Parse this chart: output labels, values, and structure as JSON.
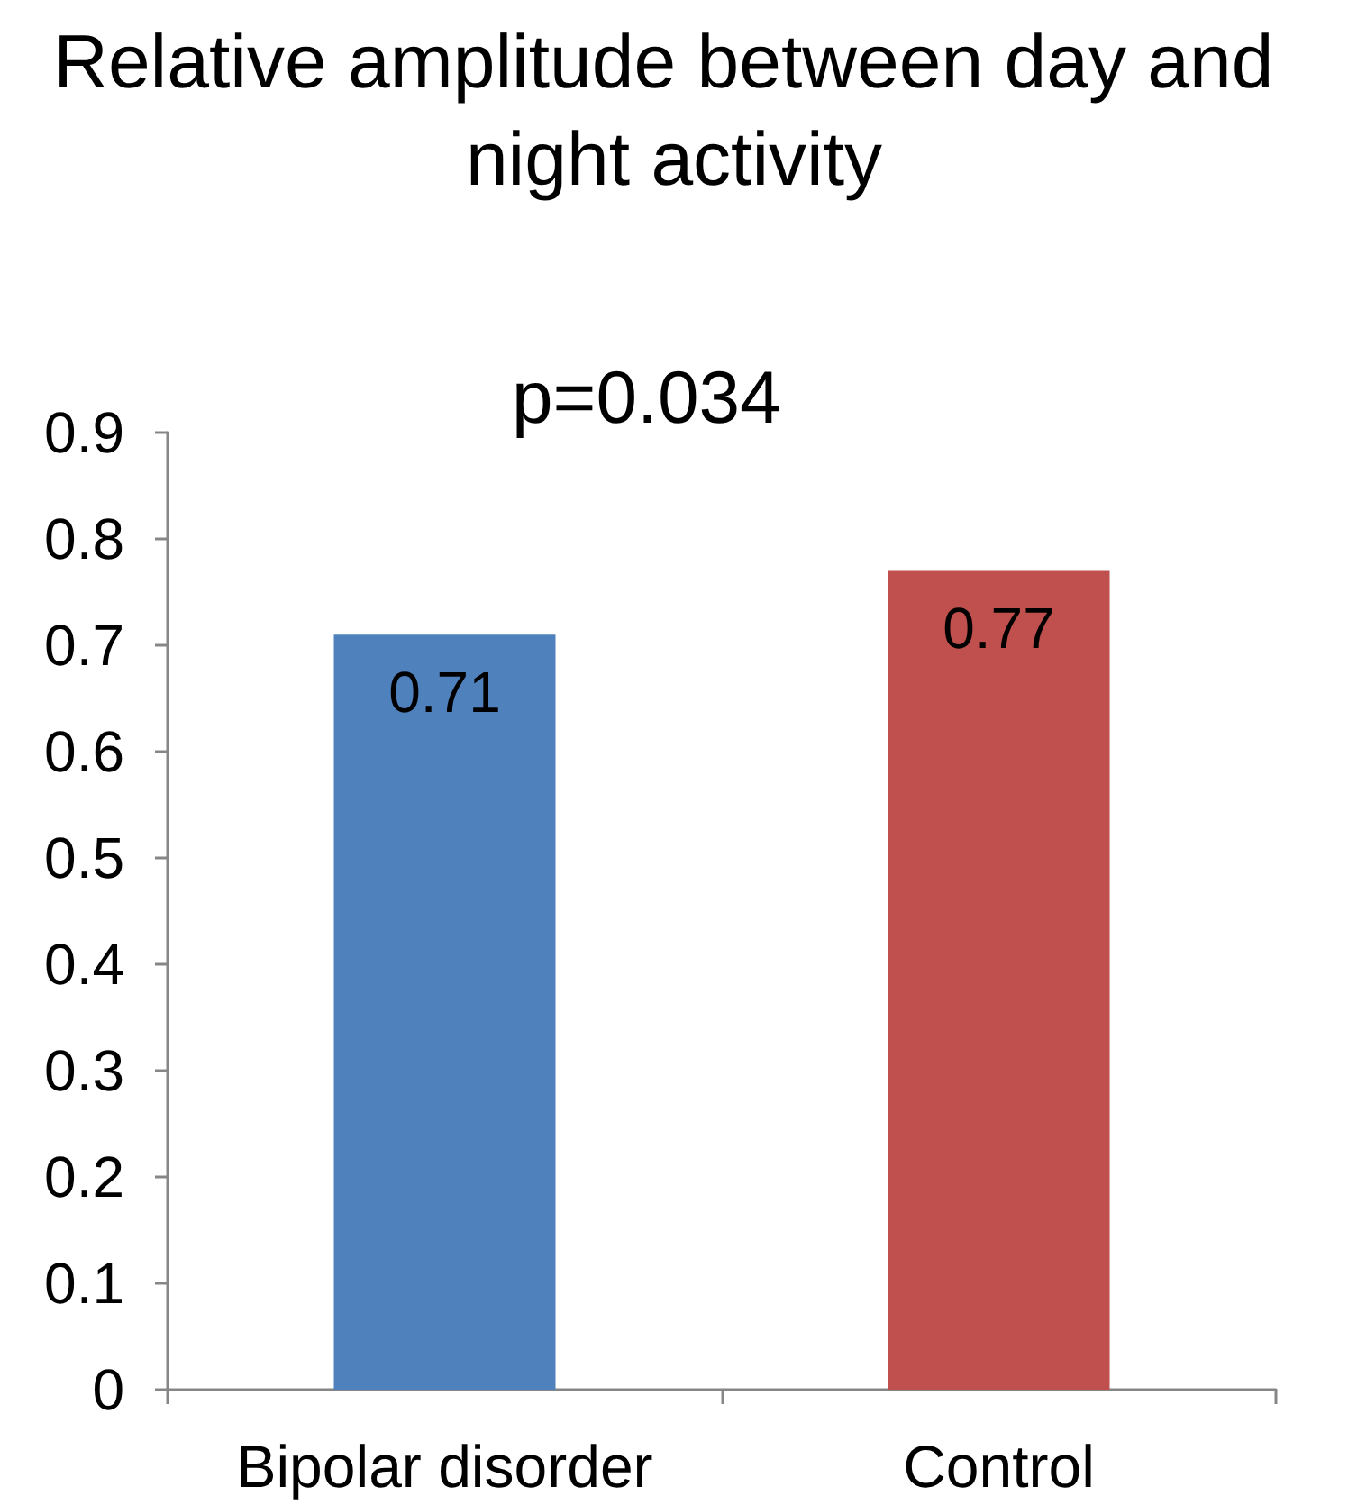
{
  "chart_data": {
    "type": "bar",
    "title": "Relative amplitude between day and night activity",
    "categories": [
      "Bipolar disorder",
      "Control"
    ],
    "values": [
      0.71,
      0.77
    ],
    "colors": [
      "#4f81bd",
      "#c0504d"
    ],
    "ylim": [
      0,
      0.9
    ],
    "yticks": [
      0,
      0.1,
      0.2,
      0.3,
      0.4,
      0.5,
      0.6,
      0.7,
      0.8,
      0.9
    ],
    "grid": false,
    "data_labels": true,
    "annotations": [
      "p=0.034"
    ]
  }
}
